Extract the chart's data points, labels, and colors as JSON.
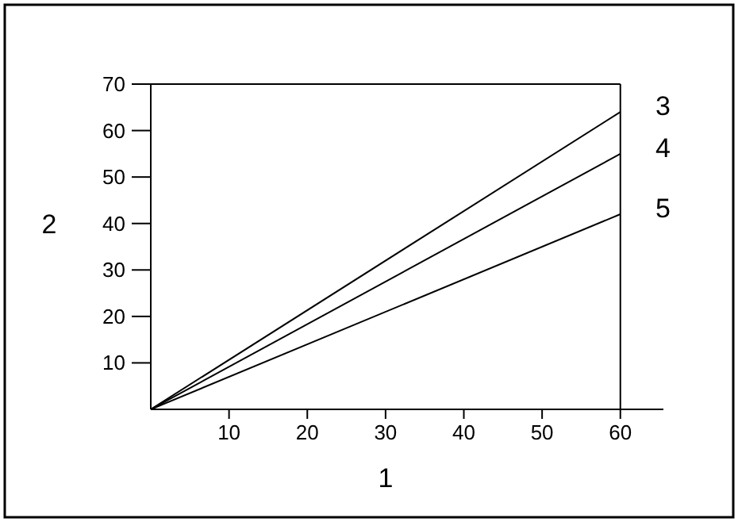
{
  "chart_data": {
    "type": "line",
    "xlabel": "1",
    "ylabel": "2",
    "x": [
      0,
      60
    ],
    "series": [
      {
        "name": "3",
        "color": "#000000",
        "values": [
          0,
          64
        ]
      },
      {
        "name": "4",
        "color": "#000000",
        "values": [
          0,
          55
        ]
      },
      {
        "name": "5",
        "color": "#000000",
        "values": [
          0,
          42
        ]
      }
    ],
    "xlim": [
      0,
      65.5
    ],
    "ylim": [
      0,
      70
    ],
    "xticks": [
      10,
      20,
      30,
      40,
      50,
      60
    ],
    "yticks": [
      10,
      20,
      30,
      40,
      50,
      60,
      70
    ],
    "ref_lines": [
      {
        "axis": "x",
        "value": 60
      }
    ],
    "grid": false,
    "legend": false,
    "marker": "none",
    "line_style": "solid"
  }
}
